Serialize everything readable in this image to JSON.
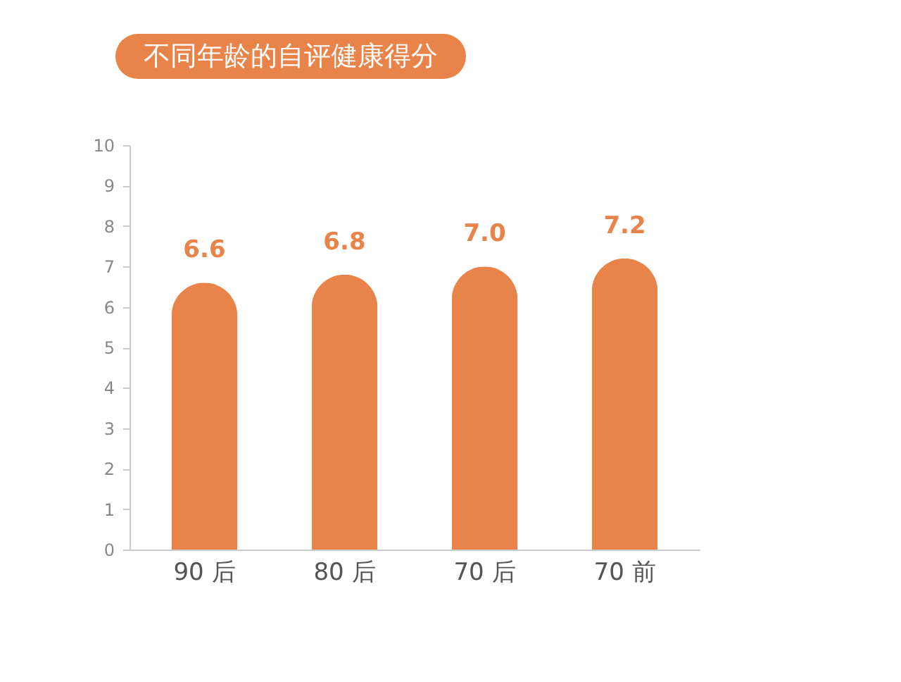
{
  "chart_data": {
    "type": "bar",
    "title": "不同年龄的自评健康得分",
    "categories": [
      "90 后",
      "80 后",
      "70 后",
      "70 前"
    ],
    "values": [
      6.6,
      6.8,
      7.0,
      7.2
    ],
    "color": "#e8834a",
    "ylim": [
      0,
      10
    ],
    "yticks": [
      0,
      1,
      2,
      3,
      4,
      5,
      6,
      7,
      8,
      9,
      10
    ],
    "data_labels": true,
    "value_labels": [
      "6.6",
      "6.8",
      "7.0",
      "7.2"
    ]
  }
}
